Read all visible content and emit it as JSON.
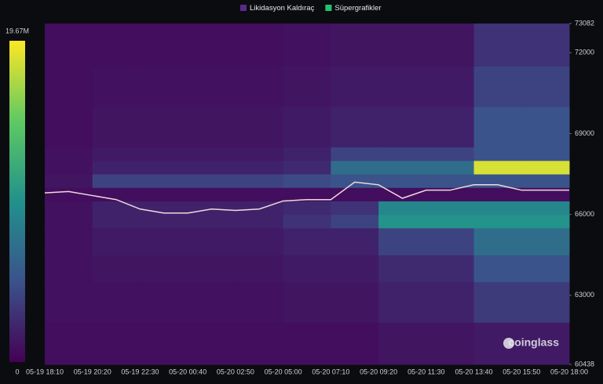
{
  "chart_data": {
    "type": "heatmap",
    "categories": [
      "05-19 18:10",
      null,
      "05-19 20:20",
      null,
      "05-19 22:30",
      null,
      "05-20 00:40",
      null,
      "05-20 02:50",
      null,
      "05-20 05:00",
      null,
      "05-20 07:10",
      null,
      "05-20 09:20",
      null,
      "05-20 11:30",
      null,
      "05-20 13:40",
      null,
      "05-20 15:50",
      null,
      "05-20 18:00"
    ],
    "ylim": [
      60438,
      73082
    ],
    "yticks": [
      60438,
      63000,
      66000,
      69000,
      72000,
      73082
    ],
    "zlim": [
      0,
      19.67
    ],
    "zticks": [
      0,
      {
        "value": 19.67,
        "label": "19.67M"
      }
    ],
    "colorscale": [
      "#440154",
      "#3b528b",
      "#21918c",
      "#5ec962",
      "#fde725"
    ],
    "watermark": "coinglass",
    "series": [
      {
        "name": "Likidasyon Kaldıraç",
        "color": "#5b2a86",
        "band_edges": [
          60438,
          62000,
          63500,
          64500,
          65500,
          66000,
          66500,
          67000,
          67500,
          68000,
          68500,
          70000,
          71500,
          73082
        ],
        "z": [
          [
            0.8,
            0.8,
            0.8,
            0.8,
            0.8,
            0.8,
            0.8,
            1.2,
            1.2,
            1.5,
            1.5
          ],
          [
            1,
            1,
            1,
            1,
            1,
            1.2,
            1.2,
            2,
            2,
            3.5,
            3.5
          ],
          [
            1,
            1.2,
            1.2,
            1.2,
            1.2,
            1.5,
            1.5,
            2.5,
            2.5,
            5,
            5
          ],
          [
            1,
            1.5,
            1.5,
            1.5,
            1.5,
            2,
            2,
            4,
            4,
            7,
            7
          ],
          [
            1,
            2,
            2,
            2,
            2,
            3,
            4,
            10,
            10,
            10,
            10
          ],
          [
            1,
            2,
            2,
            2,
            2,
            2.5,
            3,
            9,
            9,
            9,
            9
          ],
          [
            0.8,
            0.8,
            0.8,
            0.8,
            0.8,
            0.8,
            0.8,
            0.8,
            0.8,
            0.8,
            0.8
          ],
          [
            1.2,
            4,
            4,
            4,
            4,
            4.5,
            5,
            5,
            5,
            5,
            5
          ],
          [
            1,
            2,
            2,
            2,
            2,
            2.5,
            7,
            7,
            7,
            18.5,
            18.5
          ],
          [
            1,
            1.5,
            1.5,
            1.5,
            1.5,
            2,
            4,
            4,
            4,
            5,
            5
          ],
          [
            0.8,
            1.2,
            1.2,
            1.2,
            1.2,
            1.5,
            2,
            2,
            2,
            5,
            5
          ],
          [
            0.8,
            1,
            1,
            1,
            1,
            1.2,
            1.5,
            1.5,
            1.5,
            4,
            4
          ],
          [
            0.8,
            0.8,
            0.8,
            0.8,
            0.8,
            1,
            1.2,
            1.2,
            1.2,
            3,
            3
          ]
        ]
      },
      {
        "name": "Süpergrafikler",
        "color": "#22c36e",
        "line_color": "#f2d8dc",
        "values": [
          66800,
          66850,
          66700,
          66550,
          66200,
          66050,
          66050,
          66200,
          66150,
          66200,
          66500,
          66550,
          66550,
          67200,
          67100,
          66600,
          66900,
          66900,
          67100,
          67100,
          66900,
          66900,
          66900
        ]
      }
    ]
  }
}
